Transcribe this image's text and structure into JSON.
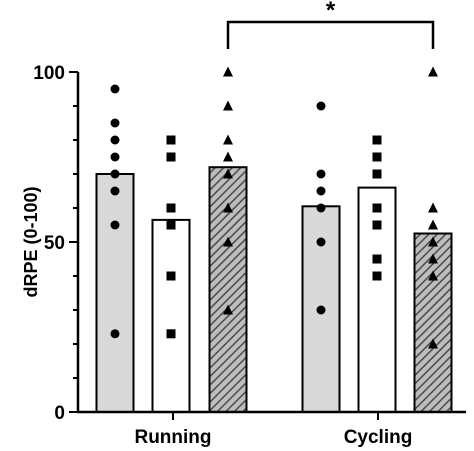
{
  "chart_data": {
    "type": "bar",
    "ylabel": "dRPE (0-100)",
    "ylim": [
      0,
      100
    ],
    "yticks": [
      "0",
      "50",
      "100"
    ],
    "categories": [
      "Running",
      "Cycling"
    ],
    "series": [
      {
        "fill": "#d9d9d9",
        "pattern": "solid",
        "marker": "circle",
        "values": [
          70,
          60.5
        ],
        "points": [
          [
            95,
            85,
            80,
            75,
            70,
            65,
            55,
            23
          ],
          [
            90,
            70,
            65,
            60,
            50,
            30
          ]
        ]
      },
      {
        "fill": "#ffffff",
        "pattern": "solid",
        "marker": "square",
        "values": [
          56.5,
          66
        ],
        "points": [
          [
            80,
            75,
            60,
            55,
            40,
            23
          ],
          [
            80,
            75,
            70,
            60,
            55,
            45,
            40
          ]
        ]
      },
      {
        "fill": "#9a9a9a",
        "pattern": "hatched",
        "marker": "triangle",
        "values": [
          72,
          52.5
        ],
        "points": [
          [
            100,
            90,
            80,
            75,
            70,
            60,
            50,
            30
          ],
          [
            100,
            60,
            55,
            50,
            45,
            40,
            20
          ]
        ]
      }
    ],
    "significance": {
      "label": "*",
      "from_series": 2,
      "from_category": 0,
      "to_series": 2,
      "to_category": 1
    },
    "grid": false,
    "legend": "none",
    "colors": {
      "axis": "#000000",
      "bar_stroke": "#000000",
      "marker": "#000000",
      "hatch": "#555555"
    }
  }
}
